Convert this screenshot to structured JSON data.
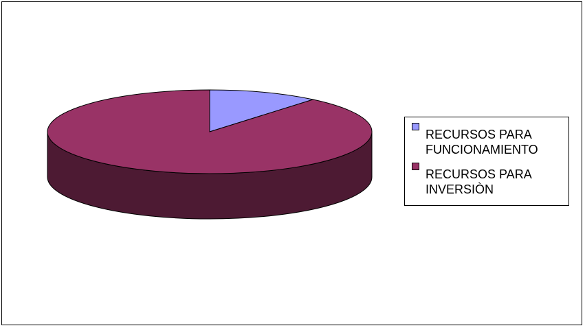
{
  "chart_data": {
    "type": "pie",
    "style": "3d",
    "title": "",
    "legend_position": "right",
    "slices": [
      {
        "label": "RECURSOS PARA\nFUNCIONAMIENTO",
        "value": 11,
        "color": "#9999ff",
        "side_color": "#4d4d80"
      },
      {
        "label": "RECURSOS PARA\nINVERSIÒN",
        "value": 89,
        "color": "#993366",
        "side_color": "#4d1a33"
      }
    ]
  }
}
